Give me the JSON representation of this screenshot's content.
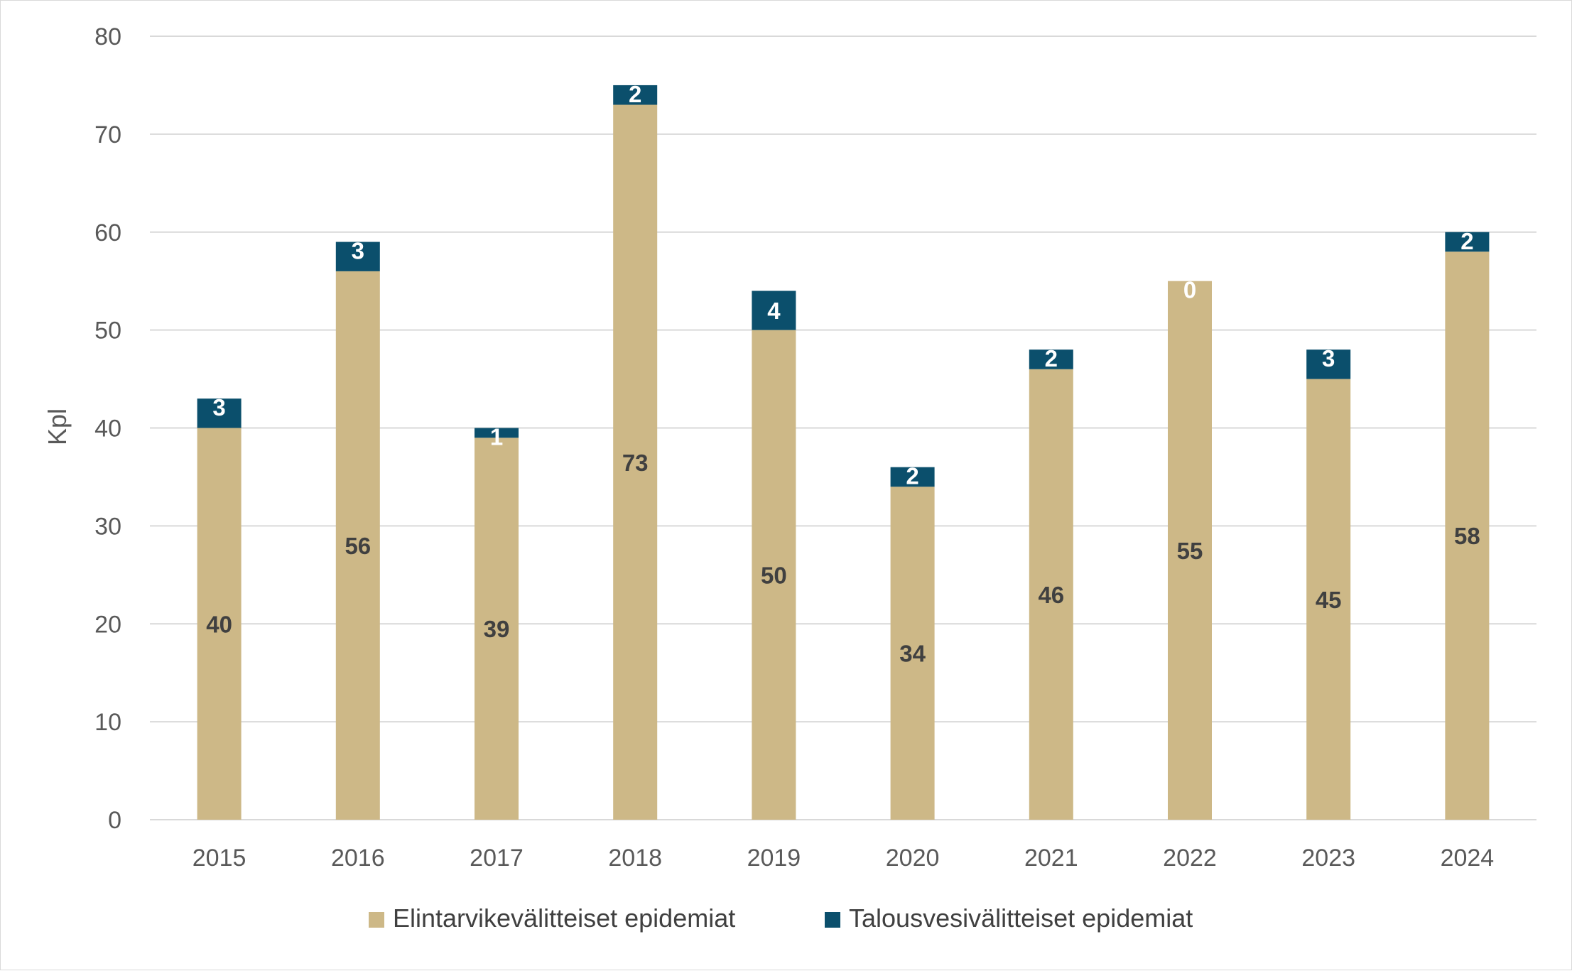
{
  "chart_data": {
    "type": "bar",
    "stacked": true,
    "categories": [
      "2015",
      "2016",
      "2017",
      "2018",
      "2019",
      "2020",
      "2021",
      "2022",
      "2023",
      "2024"
    ],
    "series": [
      {
        "name": "Elintarvikevälitteiset epidemiat",
        "color": "#CDB887",
        "label_color": "#404040",
        "values": [
          40,
          56,
          39,
          73,
          50,
          34,
          46,
          55,
          45,
          58
        ]
      },
      {
        "name": "Talousvesivälitteiset epidemiat",
        "color": "#0B4F6C",
        "label_color": "#FFFFFF",
        "values": [
          3,
          3,
          1,
          2,
          4,
          2,
          2,
          0,
          3,
          2
        ]
      }
    ],
    "ylabel": "Kpl",
    "ylim": [
      0,
      80
    ],
    "yticks": [
      0,
      10,
      20,
      30,
      40,
      50,
      60,
      70,
      80
    ],
    "grid": true,
    "legend_position": "bottom"
  }
}
